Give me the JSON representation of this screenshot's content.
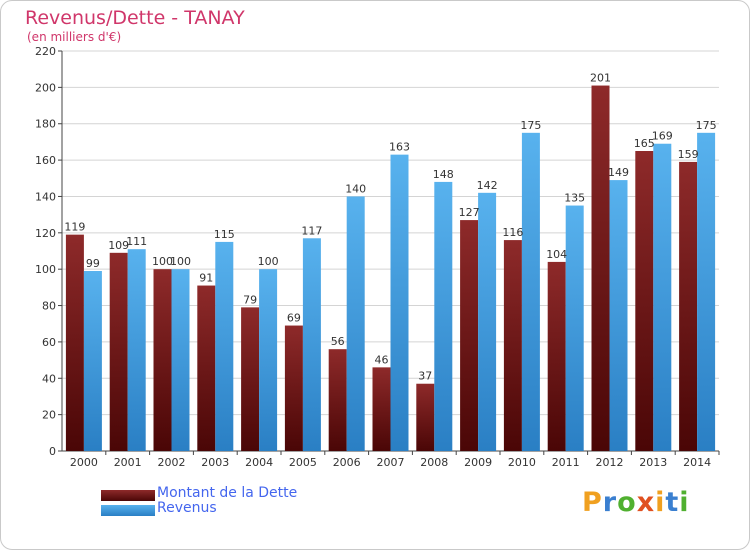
{
  "header": {
    "title": "Revenus/Dette - TANAY",
    "subtitle": "(en milliers d'€)"
  },
  "chart_data": {
    "type": "bar",
    "title": "Revenus/Dette - TANAY",
    "subtitle": "(en milliers d'€)",
    "xlabel": "",
    "ylabel": "",
    "categories": [
      "2000",
      "2001",
      "2002",
      "2003",
      "2004",
      "2005",
      "2006",
      "2007",
      "2008",
      "2009",
      "2010",
      "2011",
      "2012",
      "2013",
      "2014"
    ],
    "series": [
      {
        "name": "Montant de la Dette",
        "color": "#7a1616",
        "values": [
          119,
          109,
          100,
          91,
          79,
          69,
          56,
          46,
          37,
          127,
          116,
          104,
          201,
          165,
          159
        ]
      },
      {
        "name": "Revenus",
        "color": "#3d9ce0",
        "values": [
          99,
          111,
          100,
          115,
          100,
          117,
          140,
          163,
          148,
          142,
          175,
          135,
          149,
          169,
          175
        ]
      }
    ],
    "ylim": [
      0,
      220
    ],
    "yticks": [
      0,
      20,
      40,
      60,
      80,
      100,
      120,
      140,
      160,
      180,
      200,
      220
    ],
    "grid": true,
    "legend_position": "bottom-left"
  },
  "legend": [
    {
      "label": "Montant de la Dette",
      "color": "#7a1616"
    },
    {
      "label": "Revenus",
      "color": "#3d9ce0"
    }
  ],
  "logo": {
    "letters": [
      "P",
      "r",
      "o",
      "x",
      "i",
      "t",
      "i"
    ],
    "colors": [
      "#f0a020",
      "#3a7fd0",
      "#50b030",
      "#e05020",
      "#f0a020",
      "#3a7fd0",
      "#50b030"
    ]
  }
}
